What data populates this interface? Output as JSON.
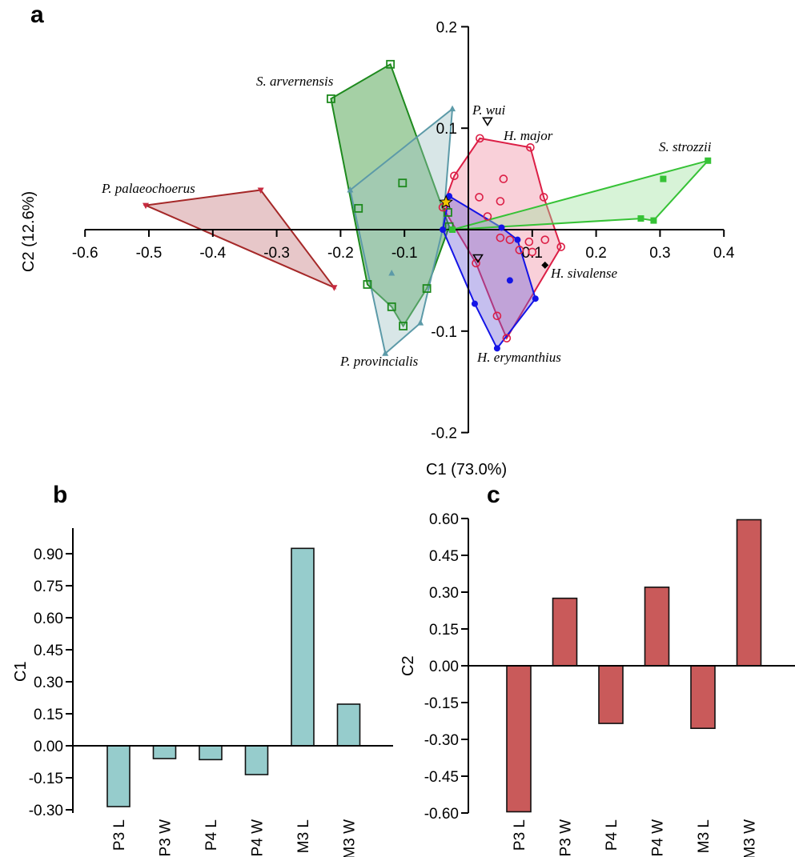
{
  "chart_data": [
    {
      "type": "scatter",
      "panel": "a",
      "xlabel": "C1 (73.0%)",
      "ylabel": "C2 (12.6%)",
      "xlim": [
        -0.6,
        0.4
      ],
      "ylim": [
        -0.2,
        0.2
      ],
      "xticks": [
        "-0.6",
        "-0.5",
        "-0.4",
        "-0.3",
        "-0.2",
        "-0.1",
        "0.1",
        "0.2",
        "0.3",
        "0.4"
      ],
      "yticks": [
        "0.2",
        "0.1",
        "-0.1",
        "-0.2"
      ],
      "grid": false,
      "series": [
        {
          "name": "P. palaeochoerus",
          "color": "#c72a3f",
          "fill": "#c47478",
          "stroke": "#a52828",
          "marker": "triangle-down-filled",
          "points": [
            [
              -0.505,
              0.024
            ],
            [
              -0.325,
              0.039
            ],
            [
              -0.21,
              -0.057
            ]
          ],
          "hull": [
            [
              -0.505,
              0.024
            ],
            [
              -0.325,
              0.039
            ],
            [
              -0.21,
              -0.057
            ]
          ]
        },
        {
          "name": "S. arvernensis",
          "color": "#1e8a1e",
          "fill": "#1e8a1e",
          "stroke": "#1e8a1e",
          "marker": "square-open",
          "points": [
            [
              -0.215,
              0.129
            ],
            [
              -0.122,
              0.163
            ],
            [
              -0.103,
              0.046
            ],
            [
              -0.172,
              0.021
            ],
            [
              -0.158,
              -0.054
            ],
            [
              -0.12,
              -0.076
            ],
            [
              -0.102,
              -0.095
            ],
            [
              -0.065,
              -0.058
            ],
            [
              -0.032,
              0.017
            ],
            [
              -0.03,
              0.003
            ]
          ],
          "hull": [
            [
              -0.215,
              0.129
            ],
            [
              -0.122,
              0.163
            ],
            [
              -0.03,
              0.003
            ],
            [
              -0.065,
              -0.058
            ],
            [
              -0.102,
              -0.095
            ],
            [
              -0.12,
              -0.076
            ],
            [
              -0.158,
              -0.054
            ]
          ]
        },
        {
          "name": "P. provincialis",
          "color": "#5c9aa8",
          "fill": "#9ec1c4",
          "stroke": "#5c9aa8",
          "marker": "triangle-up-filled",
          "points": [
            [
              -0.185,
              0.039
            ],
            [
              -0.025,
              0.119
            ],
            [
              -0.12,
              -0.043
            ],
            [
              -0.075,
              -0.092
            ],
            [
              -0.13,
              -0.122
            ]
          ],
          "hull": [
            [
              -0.185,
              0.039
            ],
            [
              -0.025,
              0.119
            ],
            [
              -0.04,
              0.001
            ],
            [
              -0.075,
              -0.092
            ],
            [
              -0.13,
              -0.122
            ]
          ]
        },
        {
          "name": "H. major",
          "color": "#dc1f46",
          "fill": "#f08a9f",
          "stroke": "#dc1f46",
          "marker": "circle-open",
          "points": [
            [
              0.018,
              0.09
            ],
            [
              0.097,
              0.081
            ],
            [
              0.055,
              0.05
            ],
            [
              0.118,
              0.032
            ],
            [
              0.017,
              0.032
            ],
            [
              0.05,
              0.028
            ],
            [
              -0.022,
              0.053
            ],
            [
              -0.04,
              0.022
            ],
            [
              0.03,
              0.013
            ],
            [
              0.05,
              -0.008
            ],
            [
              0.065,
              -0.01
            ],
            [
              0.08,
              -0.02
            ],
            [
              0.095,
              -0.012
            ],
            [
              0.12,
              -0.01
            ],
            [
              0.145,
              -0.017
            ],
            [
              0.1,
              -0.022
            ],
            [
              0.012,
              -0.033
            ],
            [
              0.045,
              -0.085
            ],
            [
              0.06,
              -0.107
            ]
          ],
          "hull": [
            [
              -0.022,
              0.053
            ],
            [
              0.018,
              0.09
            ],
            [
              0.097,
              0.081
            ],
            [
              0.118,
              0.032
            ],
            [
              0.145,
              -0.017
            ],
            [
              0.06,
              -0.107
            ],
            [
              0.045,
              -0.085
            ],
            [
              0.012,
              -0.033
            ],
            [
              -0.04,
              0.022
            ]
          ]
        },
        {
          "name": "H. erymanthius",
          "color": "#1414e6",
          "fill": "#6f60d6",
          "stroke": "#1414e6",
          "marker": "circle-filled",
          "points": [
            [
              -0.03,
              0.033
            ],
            [
              0.052,
              0.002
            ],
            [
              0.077,
              -0.01
            ],
            [
              0.065,
              -0.05
            ],
            [
              0.105,
              -0.068
            ],
            [
              0.01,
              -0.073
            ],
            [
              0.045,
              -0.117
            ],
            [
              -0.04,
              0.0
            ]
          ],
          "hull": [
            [
              -0.03,
              0.033
            ],
            [
              0.052,
              0.002
            ],
            [
              0.077,
              -0.01
            ],
            [
              0.105,
              -0.068
            ],
            [
              0.045,
              -0.117
            ],
            [
              0.01,
              -0.073
            ],
            [
              -0.04,
              0.0
            ]
          ]
        },
        {
          "name": "S. strozzii",
          "color": "#36c236",
          "fill": "#9be09b",
          "stroke": "#36c236",
          "marker": "square-filled",
          "points": [
            [
              0.375,
              0.068
            ],
            [
              0.305,
              0.05
            ],
            [
              0.27,
              0.011
            ],
            [
              0.29,
              0.009
            ],
            [
              -0.025,
              0.0
            ]
          ],
          "hull": [
            [
              -0.025,
              0.0
            ],
            [
              0.375,
              0.068
            ],
            [
              0.29,
              0.009
            ],
            [
              0.27,
              0.011
            ]
          ]
        },
        {
          "name": "P. wui",
          "color": "#000000",
          "marker": "triangle-down-open",
          "points": [
            [
              0.03,
              0.107
            ],
            [
              0.015,
              -0.028
            ]
          ]
        },
        {
          "name": "H. sivalense",
          "color": "#000000",
          "marker": "diamond-filled",
          "points": [
            [
              0.12,
              -0.035
            ]
          ]
        },
        {
          "name": "",
          "color": "#f2c400",
          "marker": "star",
          "points": [
            [
              -0.035,
              0.027
            ]
          ]
        }
      ],
      "annotations": [
        "S. arvernensis",
        "P. wui",
        "H. major",
        "S. strozzii",
        "P. palaeochoerus",
        "H. sivalense",
        "P. provincialis",
        "H. erymanthius"
      ]
    },
    {
      "type": "bar",
      "panel": "b",
      "categories": [
        "P3 L",
        "P3 W",
        "P4 L",
        "P4 W",
        "M3 L",
        "M3 W"
      ],
      "values": [
        -0.285,
        -0.06,
        -0.065,
        -0.135,
        0.925,
        0.195
      ],
      "ylabel": "C1",
      "xlabel": "",
      "ylim": [
        -0.3,
        0.96
      ],
      "yticks": [
        "0.90",
        "0.75",
        "0.60",
        "0.45",
        "0.30",
        "0.15",
        "0.00",
        "-0.15",
        "-0.30"
      ],
      "color": "#96cccc"
    },
    {
      "type": "bar",
      "panel": "c",
      "categories": [
        "P3 L",
        "P3 W",
        "P4 L",
        "P4 W",
        "M3 L",
        "M3 W"
      ],
      "values": [
        -0.595,
        0.275,
        -0.235,
        0.32,
        -0.255,
        0.595
      ],
      "ylabel": "C2",
      "xlabel": "",
      "ylim": [
        -0.6,
        0.6
      ],
      "yticks": [
        "0.60",
        "0.45",
        "0.30",
        "0.15",
        "0.00",
        "-0.15",
        "-0.30",
        "-0.45",
        "-0.60"
      ],
      "color": "#c95a5a"
    }
  ]
}
